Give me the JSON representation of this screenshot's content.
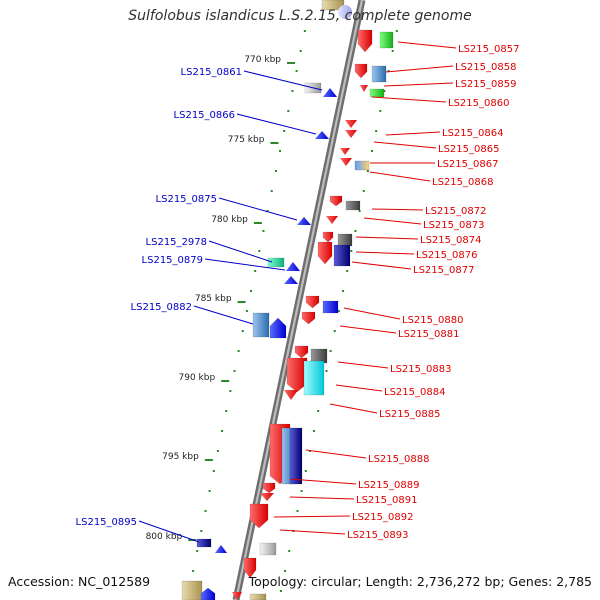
{
  "title": "Sulfolobus islandicus L.S.2.15, complete genome",
  "footer": {
    "accession": "Accession: NC_012589",
    "summary": "Topology: circular; Length: 2,736,272 bp; Genes: 2,785"
  },
  "colors": {
    "backbone": "#8c8c8c",
    "tick_dot": "#2a8a2a",
    "forward_label": "#e00000",
    "reverse_label": "#0000c8"
  },
  "ticks": [
    "770 kbp",
    "775 kbp",
    "780 kbp",
    "785 kbp",
    "790 kbp",
    "795 kbp",
    "800 kbp"
  ],
  "forward_genes": [
    "LS215_0857",
    "LS215_0858",
    "LS215_0859",
    "LS215_0860",
    "LS215_0864",
    "LS215_0865",
    "LS215_0867",
    "LS215_0868",
    "LS215_0872",
    "LS215_0873",
    "LS215_0874",
    "LS215_0876",
    "LS215_0877",
    "LS215_0880",
    "LS215_0881",
    "LS215_0883",
    "LS215_0884",
    "LS215_0885",
    "LS215_0888",
    "LS215_0889",
    "LS215_0891",
    "LS215_0892",
    "LS215_0893"
  ],
  "reverse_genes": [
    "LS215_0861",
    "LS215_0866",
    "LS215_0875",
    "LS215_2978",
    "LS215_0879",
    "LS215_0882",
    "LS215_0895"
  ]
}
